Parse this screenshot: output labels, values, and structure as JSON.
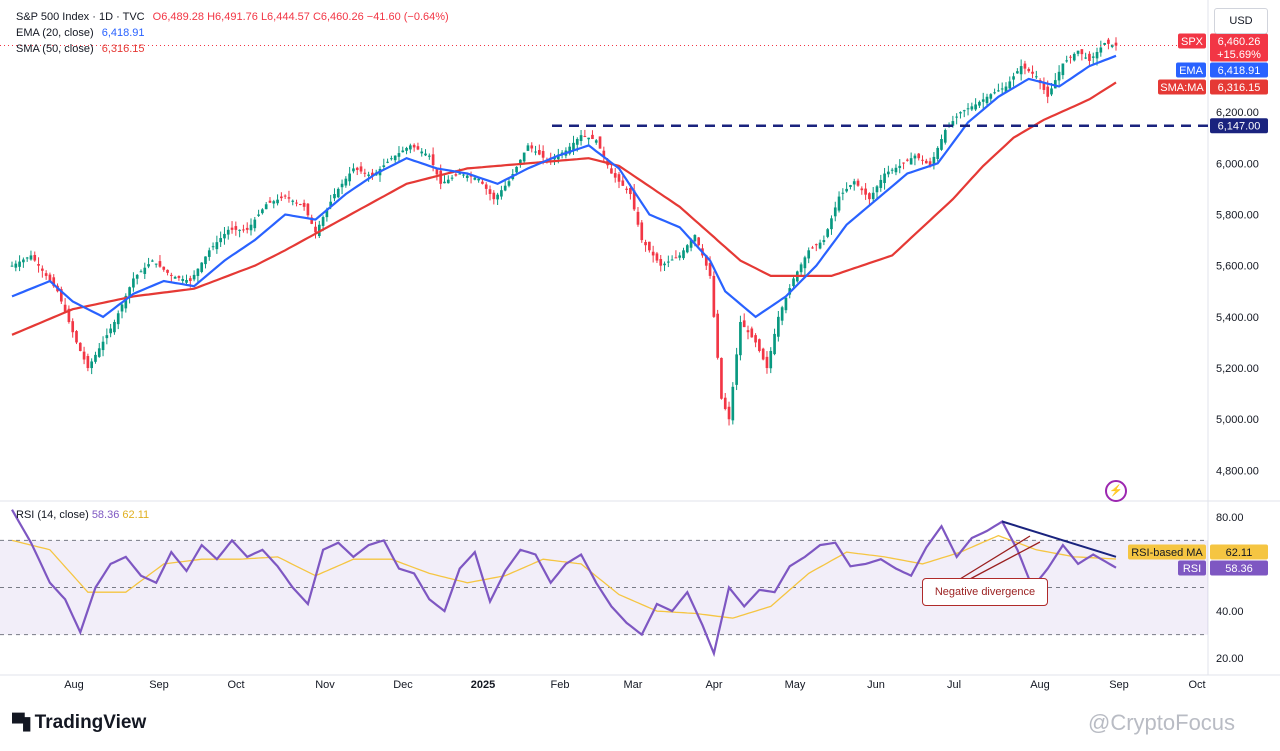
{
  "legend": {
    "main": {
      "name": "S&P 500 Index · 1D · TVC",
      "o": "O6,489.28",
      "h": "H6,491.76",
      "l": "L6,444.57",
      "c": "C6,460.26",
      "chg": "−41.60 (−0.64%)"
    },
    "ema": {
      "name": "EMA (20, close)",
      "value": "6,418.91"
    },
    "sma": {
      "name": "SMA (50, close)",
      "value": "6,316.15"
    },
    "rsi": {
      "name": "RSI (14, close)",
      "value": "58.36",
      "ma": "62.11"
    }
  },
  "currency": "USD",
  "annotation": "Negative divergence",
  "branding": {
    "logo": "TradingView",
    "watermark": "@CryptoFocus"
  },
  "colors": {
    "up": "#089981",
    "down": "#f23645",
    "ema": "#2962ff",
    "sma": "#e53935",
    "rsi": "#7e57c2",
    "rsi_ma": "#f5c542",
    "support": "#1a237e"
  },
  "chart_data": [
    {
      "type": "candlestick",
      "title": "S&P 500 Index · 1D · TVC",
      "ylim": [
        4700,
        6560
      ],
      "y_ticks": [
        "4,800.00",
        "5,000.00",
        "5,200.00",
        "5,400.00",
        "5,600.00",
        "5,800.00",
        "6,000.00",
        "6,200.00"
      ],
      "y_tick_values": [
        4800,
        5000,
        5200,
        5400,
        5600,
        5800,
        6000,
        6200
      ],
      "x_ticks": [
        "Aug",
        "Sep",
        "Oct",
        "Nov",
        "Dec",
        "2025",
        "Feb",
        "Mar",
        "Apr",
        "May",
        "Jun",
        "Jul",
        "Aug",
        "Sep",
        "Oct"
      ],
      "support_level": {
        "value": 6147,
        "label": "6,147.00"
      },
      "price_labels": [
        {
          "name": "SPX",
          "value": 6460.26,
          "text": "6,460.26",
          "sub": "+15.69%",
          "color": "#f23645"
        },
        {
          "name": "EMA",
          "value": 6418.91,
          "text": "6,418.91",
          "color": "#2962ff"
        },
        {
          "name": "SMA:MA",
          "value": 6316.15,
          "text": "6,316.15",
          "color": "#e53935"
        }
      ],
      "close_series": {
        "name": "S&P 500",
        "anchors": [
          [
            0,
            5600
          ],
          [
            5,
            5640
          ],
          [
            12,
            5500
          ],
          [
            17,
            5300
          ],
          [
            20,
            5200
          ],
          [
            27,
            5380
          ],
          [
            32,
            5550
          ],
          [
            37,
            5620
          ],
          [
            42,
            5560
          ],
          [
            47,
            5540
          ],
          [
            52,
            5660
          ],
          [
            57,
            5740
          ],
          [
            62,
            5740
          ],
          [
            67,
            5840
          ],
          [
            72,
            5870
          ],
          [
            77,
            5830
          ],
          [
            80,
            5730
          ],
          [
            85,
            5880
          ],
          [
            90,
            5980
          ],
          [
            95,
            5950
          ],
          [
            100,
            6020
          ],
          [
            105,
            6070
          ],
          [
            110,
            6030
          ],
          [
            113,
            5920
          ],
          [
            118,
            5960
          ],
          [
            123,
            5940
          ],
          [
            127,
            5860
          ],
          [
            131,
            5930
          ],
          [
            136,
            6070
          ],
          [
            141,
            6010
          ],
          [
            146,
            6050
          ],
          [
            150,
            6110
          ],
          [
            154,
            6090
          ],
          [
            158,
            5960
          ],
          [
            163,
            5880
          ],
          [
            166,
            5700
          ],
          [
            171,
            5600
          ],
          [
            176,
            5640
          ],
          [
            180,
            5720
          ],
          [
            184,
            5560
          ],
          [
            187,
            5080
          ],
          [
            189,
            5000
          ],
          [
            192,
            5380
          ],
          [
            196,
            5300
          ],
          [
            199,
            5200
          ],
          [
            202,
            5400
          ],
          [
            206,
            5550
          ],
          [
            210,
            5660
          ],
          [
            214,
            5700
          ],
          [
            218,
            5870
          ],
          [
            222,
            5930
          ],
          [
            226,
            5860
          ],
          [
            230,
            5960
          ],
          [
            234,
            5990
          ],
          [
            238,
            6030
          ],
          [
            242,
            5990
          ],
          [
            246,
            6130
          ],
          [
            250,
            6200
          ],
          [
            254,
            6230
          ],
          [
            258,
            6270
          ],
          [
            262,
            6300
          ],
          [
            266,
            6380
          ],
          [
            270,
            6340
          ],
          [
            273,
            6260
          ],
          [
            277,
            6390
          ],
          [
            281,
            6440
          ],
          [
            284,
            6400
          ],
          [
            288,
            6470
          ],
          [
            291,
            6460
          ]
        ]
      },
      "ema_series": {
        "name": "EMA (20, close)",
        "anchors": [
          [
            0,
            5480
          ],
          [
            10,
            5540
          ],
          [
            16,
            5460
          ],
          [
            24,
            5400
          ],
          [
            32,
            5490
          ],
          [
            40,
            5540
          ],
          [
            48,
            5520
          ],
          [
            56,
            5620
          ],
          [
            64,
            5700
          ],
          [
            72,
            5800
          ],
          [
            80,
            5780
          ],
          [
            88,
            5880
          ],
          [
            96,
            5960
          ],
          [
            104,
            6020
          ],
          [
            112,
            5980
          ],
          [
            120,
            5960
          ],
          [
            128,
            5920
          ],
          [
            136,
            5980
          ],
          [
            144,
            6030
          ],
          [
            152,
            6070
          ],
          [
            160,
            5980
          ],
          [
            168,
            5800
          ],
          [
            176,
            5750
          ],
          [
            184,
            5620
          ],
          [
            188,
            5500
          ],
          [
            196,
            5400
          ],
          [
            204,
            5480
          ],
          [
            212,
            5600
          ],
          [
            220,
            5760
          ],
          [
            228,
            5860
          ],
          [
            236,
            5960
          ],
          [
            244,
            6000
          ],
          [
            252,
            6160
          ],
          [
            260,
            6260
          ],
          [
            268,
            6330
          ],
          [
            276,
            6300
          ],
          [
            284,
            6380
          ],
          [
            291,
            6420
          ]
        ]
      },
      "sma_series": {
        "name": "SMA (50, close)",
        "anchors": [
          [
            0,
            5330
          ],
          [
            16,
            5430
          ],
          [
            32,
            5480
          ],
          [
            48,
            5510
          ],
          [
            64,
            5600
          ],
          [
            72,
            5660
          ],
          [
            88,
            5790
          ],
          [
            104,
            5920
          ],
          [
            120,
            5980
          ],
          [
            136,
            6000
          ],
          [
            152,
            6020
          ],
          [
            160,
            5990
          ],
          [
            176,
            5830
          ],
          [
            192,
            5620
          ],
          [
            200,
            5560
          ],
          [
            216,
            5560
          ],
          [
            232,
            5640
          ],
          [
            248,
            5860
          ],
          [
            256,
            5990
          ],
          [
            264,
            6100
          ],
          [
            272,
            6170
          ],
          [
            284,
            6250
          ],
          [
            291,
            6316
          ]
        ]
      }
    },
    {
      "type": "line",
      "title": "RSI (14, close)",
      "ylim": [
        15,
        85
      ],
      "y_ticks": [
        "20.00",
        "40.00",
        "80.00"
      ],
      "y_tick_values": [
        20,
        40,
        80
      ],
      "bands": [
        30,
        50,
        70
      ],
      "price_labels": [
        {
          "name": "RSI-based MA",
          "value": 62.11,
          "text": "62.11",
          "color": "#f5c542"
        },
        {
          "name": "RSI",
          "value": 58.36,
          "text": "58.36",
          "color": "#7e57c2"
        }
      ],
      "rsi_series": {
        "name": "RSI",
        "anchors": [
          [
            0,
            83
          ],
          [
            5,
            69
          ],
          [
            10,
            52
          ],
          [
            14,
            45
          ],
          [
            18,
            31
          ],
          [
            22,
            50
          ],
          [
            26,
            60
          ],
          [
            30,
            63
          ],
          [
            34,
            55
          ],
          [
            38,
            52
          ],
          [
            42,
            65
          ],
          [
            46,
            57
          ],
          [
            50,
            68
          ],
          [
            54,
            62
          ],
          [
            58,
            70
          ],
          [
            62,
            63
          ],
          [
            66,
            66
          ],
          [
            70,
            59
          ],
          [
            74,
            50
          ],
          [
            78,
            43
          ],
          [
            82,
            66
          ],
          [
            86,
            69
          ],
          [
            90,
            63
          ],
          [
            94,
            68
          ],
          [
            98,
            70
          ],
          [
            102,
            58
          ],
          [
            106,
            56
          ],
          [
            110,
            45
          ],
          [
            114,
            40
          ],
          [
            118,
            58
          ],
          [
            122,
            65
          ],
          [
            126,
            44
          ],
          [
            130,
            57
          ],
          [
            134,
            66
          ],
          [
            138,
            64
          ],
          [
            142,
            52
          ],
          [
            146,
            60
          ],
          [
            150,
            64
          ],
          [
            154,
            52
          ],
          [
            158,
            42
          ],
          [
            162,
            35
          ],
          [
            166,
            30
          ],
          [
            170,
            43
          ],
          [
            174,
            40
          ],
          [
            178,
            48
          ],
          [
            182,
            34
          ],
          [
            185,
            22
          ],
          [
            189,
            50
          ],
          [
            193,
            42
          ],
          [
            197,
            49
          ],
          [
            201,
            48
          ],
          [
            205,
            59
          ],
          [
            209,
            63
          ],
          [
            213,
            68
          ],
          [
            217,
            69
          ],
          [
            221,
            59
          ],
          [
            225,
            60
          ],
          [
            229,
            62
          ],
          [
            233,
            58
          ],
          [
            237,
            55
          ],
          [
            241,
            67
          ],
          [
            245,
            76
          ],
          [
            249,
            63
          ],
          [
            253,
            71
          ],
          [
            257,
            74
          ],
          [
            261,
            78
          ],
          [
            265,
            66
          ],
          [
            269,
            50
          ],
          [
            273,
            58
          ],
          [
            277,
            68
          ],
          [
            281,
            60
          ],
          [
            285,
            64
          ],
          [
            291,
            58.4
          ]
        ]
      },
      "rsi_ma_series": {
        "name": "RSI-based MA",
        "anchors": [
          [
            0,
            70
          ],
          [
            10,
            66
          ],
          [
            20,
            48
          ],
          [
            30,
            48
          ],
          [
            40,
            60
          ],
          [
            50,
            62
          ],
          [
            60,
            62
          ],
          [
            70,
            63
          ],
          [
            80,
            55
          ],
          [
            90,
            62
          ],
          [
            100,
            62
          ],
          [
            110,
            56
          ],
          [
            120,
            52
          ],
          [
            130,
            55
          ],
          [
            140,
            62
          ],
          [
            150,
            60
          ],
          [
            160,
            47
          ],
          [
            170,
            40
          ],
          [
            180,
            39
          ],
          [
            190,
            37
          ],
          [
            200,
            42
          ],
          [
            210,
            56
          ],
          [
            220,
            65
          ],
          [
            230,
            63
          ],
          [
            240,
            60
          ],
          [
            250,
            65
          ],
          [
            260,
            72
          ],
          [
            270,
            66
          ],
          [
            280,
            63
          ],
          [
            291,
            62.1
          ]
        ]
      },
      "divergence_line": {
        "from": [
          261,
          78
        ],
        "to": [
          291,
          63
        ]
      }
    }
  ]
}
